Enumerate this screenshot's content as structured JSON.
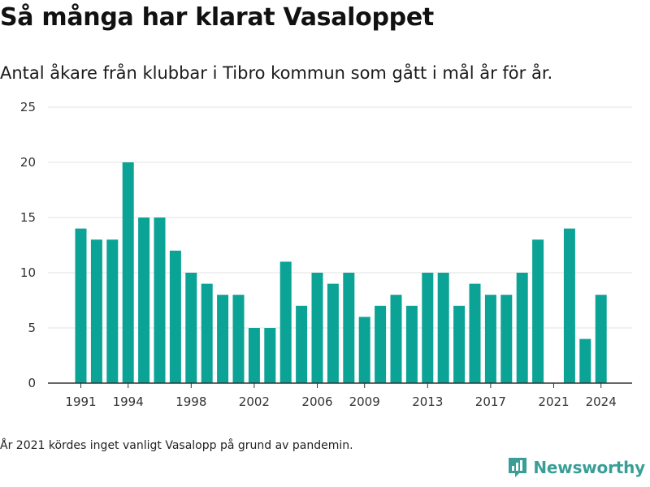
{
  "title": "Så många har klarat Vasaloppet",
  "subtitle": "Antal åkare från klubbar i Tibro kommun som gått i mål år för år.",
  "note": "År 2021 kördes inget vanligt Vasalopp på grund av pandemin.",
  "brand": {
    "name": "Newsworthy",
    "icon": "bar-chart-speech-bubble-icon"
  },
  "colors": {
    "bar": "#0aa396",
    "grid": "#e3e3e3",
    "axis": "#333333",
    "brand": "#3a9e98"
  },
  "chart_data": {
    "type": "bar",
    "title": "",
    "xlabel": "",
    "ylabel": "",
    "ylim": [
      0,
      25
    ],
    "yticks": [
      0,
      5,
      10,
      15,
      20,
      25
    ],
    "xtick_labels": [
      "1991",
      "1994",
      "1998",
      "2002",
      "2006",
      "2009",
      "2013",
      "2017",
      "2021",
      "2024"
    ],
    "grid": true,
    "categories": [
      1991,
      1992,
      1993,
      1994,
      1995,
      1996,
      1997,
      1998,
      1999,
      2000,
      2001,
      2002,
      2003,
      2004,
      2005,
      2006,
      2007,
      2008,
      2009,
      2010,
      2011,
      2012,
      2013,
      2014,
      2015,
      2016,
      2017,
      2018,
      2019,
      2020,
      2021,
      2022,
      2023,
      2024
    ],
    "values": [
      14,
      13,
      13,
      20,
      15,
      15,
      12,
      10,
      9,
      8,
      8,
      5,
      5,
      11,
      7,
      10,
      9,
      10,
      6,
      7,
      8,
      7,
      10,
      10,
      7,
      9,
      8,
      8,
      10,
      13,
      null,
      14,
      4,
      8
    ]
  }
}
